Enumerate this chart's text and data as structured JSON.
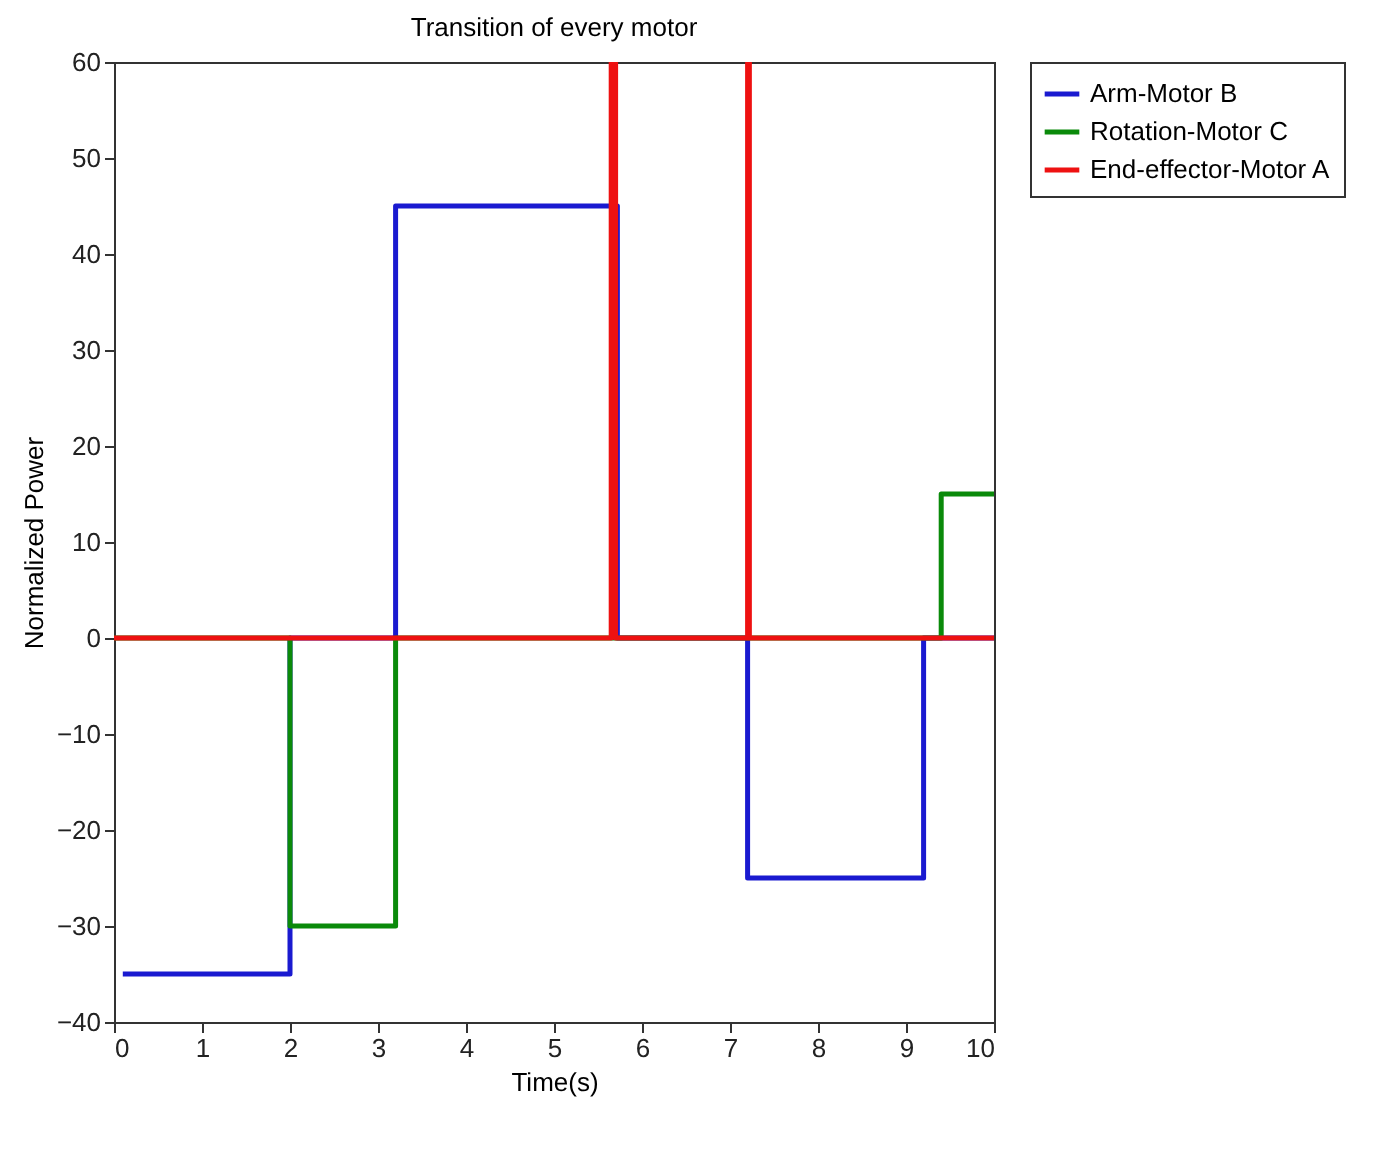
{
  "chart_data": {
    "type": "step",
    "title": "Transition of every motor",
    "xlabel": "Time(s)",
    "ylabel": "Normalized Power",
    "xlim": [
      0,
      10
    ],
    "xticks": [
      0,
      1,
      2,
      3,
      4,
      5,
      6,
      7,
      8,
      9,
      10
    ],
    "ylim": [
      -40,
      60
    ],
    "yticks": [
      -40,
      -30,
      -20,
      -10,
      0,
      10,
      20,
      30,
      40,
      50,
      60
    ],
    "grid": false,
    "legend": "top right",
    "line_style": "solid",
    "series": [
      {
        "name": "Arm-Motor B",
        "color": "#1a1ad0",
        "x": [
          0.1,
          2,
          3.2,
          5.72,
          7.2,
          9.2,
          10
        ],
        "values": [
          -35,
          0,
          45,
          0,
          -25,
          0,
          0
        ]
      },
      {
        "name": "Rotation-Motor C",
        "color": "#0a8a0a",
        "x": [
          0,
          2,
          3.2,
          9.4,
          10
        ],
        "values": [
          0,
          -30,
          0,
          15,
          15
        ]
      },
      {
        "name": "End-effector-Motor A",
        "color": "#ee1111",
        "x": [
          0,
          5.65,
          5.7,
          7.2,
          7.22,
          10
        ],
        "values": [
          0,
          60,
          0,
          60,
          0,
          0
        ]
      }
    ]
  }
}
